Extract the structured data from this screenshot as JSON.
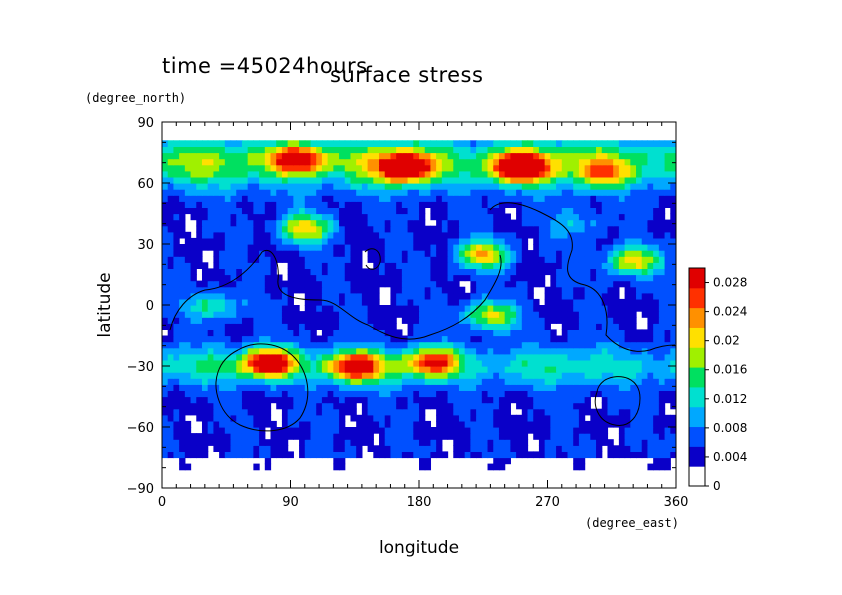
{
  "header": {
    "time_label": "time =45024hours",
    "title": "surface stress"
  },
  "chart_data": {
    "type": "heatmap",
    "title": "surface stress",
    "xlabel": "longitude",
    "ylabel": "latitude",
    "x_units": "(degree_east)",
    "y_units": "(degree_north)",
    "xlim": [
      0,
      360
    ],
    "ylim": [
      -90,
      90
    ],
    "x_ticks": [
      0,
      90,
      180,
      270,
      360
    ],
    "y_ticks": [
      -90,
      -60,
      -30,
      0,
      30,
      60,
      90
    ],
    "x_tick_labels": [
      "0",
      "90",
      "180",
      "270",
      "360"
    ],
    "y_tick_labels": [
      "−90",
      "−60",
      "−30",
      "0",
      "30",
      "60",
      "90"
    ],
    "colorbar": {
      "min": 0,
      "max": 0.03,
      "tick_values": [
        0,
        0.004,
        0.008,
        0.012,
        0.016,
        0.02,
        0.024,
        0.028
      ],
      "tick_labels": [
        "0",
        "0.004",
        "0.008",
        "0.012",
        "0.016",
        "0.02",
        "0.024",
        "0.028"
      ],
      "colors": [
        "#ffffff",
        "#0a00c8",
        "#0050ff",
        "#00a8ff",
        "#00e0d0",
        "#00e060",
        "#a0f000",
        "#ffe000",
        "#ff9000",
        "#ff3000",
        "#e00000"
      ]
    },
    "features": [
      {
        "type": "band",
        "lat": 70,
        "lat_width": 18,
        "value": 0.014
      },
      {
        "type": "peak",
        "lon": 95,
        "lat": 72,
        "value": 0.022
      },
      {
        "type": "peak",
        "lon": 170,
        "lat": 68,
        "value": 0.028
      },
      {
        "type": "peak",
        "lon": 250,
        "lat": 68,
        "value": 0.029
      },
      {
        "type": "peak",
        "lon": 310,
        "lat": 65,
        "value": 0.012
      },
      {
        "type": "band",
        "lat": -30,
        "lat_width": 14,
        "value": 0.009
      },
      {
        "type": "peak",
        "lon": 75,
        "lat": -28,
        "value": 0.026
      },
      {
        "type": "peak",
        "lon": 135,
        "lat": -30,
        "value": 0.024
      },
      {
        "type": "peak",
        "lon": 190,
        "lat": -28,
        "value": 0.02
      },
      {
        "type": "peak",
        "lon": 100,
        "lat": 38,
        "value": 0.018
      },
      {
        "type": "peak",
        "lon": 225,
        "lat": 25,
        "value": 0.018
      },
      {
        "type": "peak",
        "lon": 330,
        "lat": 22,
        "value": 0.018
      },
      {
        "type": "peak",
        "lon": 230,
        "lat": -5,
        "value": 0.016
      },
      {
        "type": "peak",
        "lon": 35,
        "lat": 0,
        "value": 0.01
      },
      {
        "type": "peak",
        "lon": 290,
        "lat": 40,
        "value": 0.006
      }
    ]
  }
}
